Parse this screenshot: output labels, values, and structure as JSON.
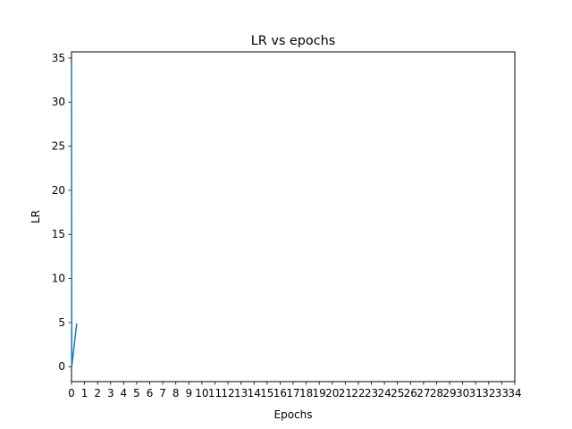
{
  "chart_data": {
    "type": "line",
    "title": "LR vs epochs",
    "xlabel": "Epochs",
    "ylabel": "LR",
    "xlim": [
      0,
      34
    ],
    "ylim": [
      -1.7,
      35.7
    ],
    "xticks": [
      "0",
      "1",
      "2",
      "3",
      "4",
      "5",
      "6",
      "7",
      "8",
      "9",
      "10",
      "11",
      "12",
      "13",
      "14",
      "15",
      "16",
      "17",
      "18",
      "19",
      "20",
      "21",
      "22",
      "23",
      "24",
      "25",
      "26",
      "27",
      "28",
      "29",
      "30",
      "31",
      "32",
      "33",
      "34"
    ],
    "yticks": [
      "0",
      "5",
      "10",
      "15",
      "20",
      "25",
      "30",
      "35"
    ],
    "grid": false,
    "series": [
      {
        "color": "#1f77b4",
        "x": [
          0,
          0.02,
          0.4
        ],
        "y": [
          34.3,
          0,
          4.9
        ]
      }
    ]
  }
}
